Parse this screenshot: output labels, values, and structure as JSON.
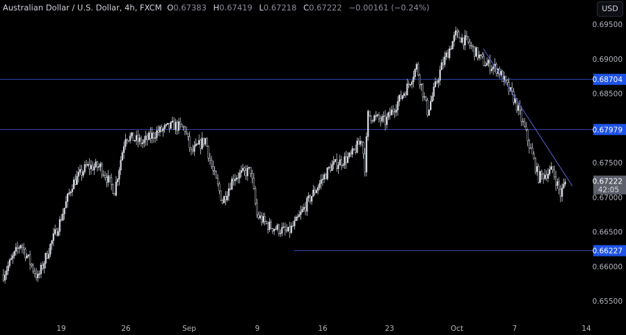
{
  "header": {
    "symbol": "Australian Dollar / U.S. Dollar, 4h, FXCM",
    "o_label": "O",
    "o": "0.67383",
    "h_label": "H",
    "h": "0.67419",
    "l_label": "L",
    "l": "0.67218",
    "c_label": "C",
    "c": "0.67222",
    "change": "−0.00161 (−0.24%)"
  },
  "currency_button": "USD",
  "colors": {
    "background": "#000000",
    "candle": "#d1d4dc",
    "level_line": "#3548b8",
    "level_label": "#1e53e5",
    "current_price_label": "#5d606b"
  },
  "chart_data": {
    "type": "candlestick",
    "symbol": "AUDUSD",
    "timeframe": "4h",
    "ylim": [
      0.6525,
      0.6975
    ],
    "y_ticks": [
      "0.69500",
      "0.69000",
      "0.68500",
      "0.67500",
      "0.67000",
      "0.66500",
      "0.66000",
      "0.65500"
    ],
    "x_ticks": [
      "19",
      "26",
      "Sep",
      "9",
      "16",
      "23",
      "Oct",
      "7",
      "14"
    ],
    "close_path": [
      [
        0,
        0.6588
      ],
      [
        11,
        0.6633
      ],
      [
        22,
        0.6583
      ],
      [
        27,
        0.6613
      ],
      [
        36,
        0.6664
      ],
      [
        44,
        0.6719
      ],
      [
        53,
        0.6744
      ],
      [
        62,
        0.6744
      ],
      [
        71,
        0.6709
      ],
      [
        78,
        0.6789
      ],
      [
        89,
        0.6779
      ],
      [
        98,
        0.6794
      ],
      [
        109,
        0.6804
      ],
      [
        116,
        0.6799
      ],
      [
        120,
        0.6764
      ],
      [
        129,
        0.6784
      ],
      [
        133,
        0.6744
      ],
      [
        140,
        0.6694
      ],
      [
        147,
        0.6729
      ],
      [
        158,
        0.6739
      ],
      [
        162,
        0.6674
      ],
      [
        169,
        0.6659
      ],
      [
        182,
        0.6649
      ],
      [
        187,
        0.6664
      ],
      [
        196,
        0.6699
      ],
      [
        209,
        0.6744
      ],
      [
        222,
        0.6759
      ],
      [
        229,
        0.6784
      ],
      [
        231,
        0.6744
      ],
      [
        233,
        0.6819
      ],
      [
        244,
        0.6809
      ],
      [
        258,
        0.6859
      ],
      [
        264,
        0.6889
      ],
      [
        271,
        0.6824
      ],
      [
        280,
        0.6889
      ],
      [
        289,
        0.6935
      ],
      [
        296,
        0.6925
      ],
      [
        307,
        0.6895
      ],
      [
        316,
        0.6885
      ],
      [
        327,
        0.6839
      ],
      [
        333,
        0.6799
      ],
      [
        342,
        0.6729
      ],
      [
        351,
        0.6739
      ],
      [
        356,
        0.6704
      ],
      [
        359,
        0.6722
      ]
    ],
    "levels": [
      {
        "label": "0.68704",
        "value": 0.68704
      },
      {
        "label": "0.67979",
        "value": 0.67979
      },
      {
        "label": "0.66227",
        "value": 0.66227
      }
    ],
    "current_price": {
      "label": "0.67222",
      "countdown": "42:05"
    },
    "trendline": [
      [
        307,
        0.6915
      ],
      [
        364,
        0.6716
      ]
    ]
  }
}
